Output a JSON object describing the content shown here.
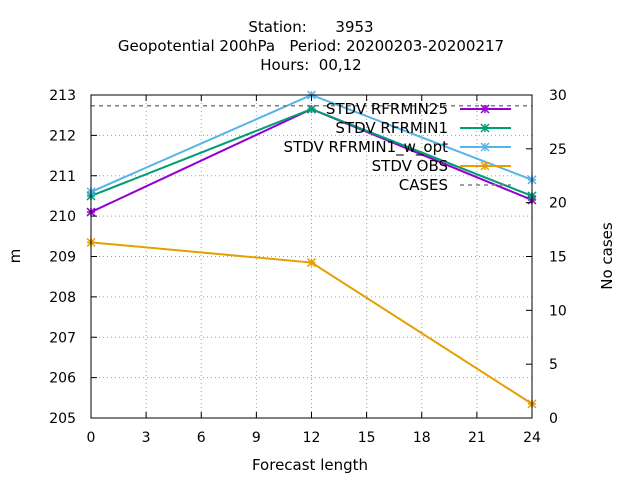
{
  "header": {
    "line1": "Station:      3953",
    "line2": "Geopotential 200hPa   Period: 20200203-20200217",
    "line3": "Hours:  00,12"
  },
  "chart_data": {
    "type": "line",
    "xlabel": "Forecast length",
    "ylabel": "m",
    "y2label": "No cases",
    "xlim": [
      0,
      24
    ],
    "ylim": [
      205,
      213
    ],
    "y2lim": [
      0,
      30
    ],
    "xticks": [
      0,
      3,
      6,
      9,
      12,
      15,
      18,
      21,
      24
    ],
    "yticks": [
      205,
      206,
      207,
      208,
      209,
      210,
      211,
      212,
      213
    ],
    "y2ticks": [
      0,
      5,
      10,
      15,
      20,
      25,
      30
    ],
    "grid": true,
    "legend_position": "top-right",
    "x": [
      0,
      12,
      24
    ],
    "series": [
      {
        "name": "STDV RFRMIN25",
        "axis": "y1",
        "color": "#9400d3",
        "values": [
          210.1,
          212.65,
          210.4
        ]
      },
      {
        "name": "STDV RFRMIN1",
        "axis": "y1",
        "color": "#009e73",
        "values": [
          210.5,
          212.65,
          210.5
        ]
      },
      {
        "name": "STDV RFRMIN1_w_opt",
        "axis": "y1",
        "color": "#56b4e9",
        "values": [
          210.6,
          213.0,
          210.9
        ]
      },
      {
        "name": "STDV OBS",
        "axis": "y1",
        "color": "#e69f00",
        "values": [
          209.35,
          208.85,
          205.35
        ]
      },
      {
        "name": "CASES",
        "axis": "y2",
        "color": "#808080",
        "dashed": true,
        "values": [
          29,
          29,
          29
        ]
      }
    ]
  }
}
